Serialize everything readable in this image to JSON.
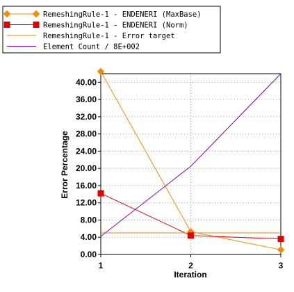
{
  "chart_data": {
    "type": "line",
    "xlabel": "Iteration",
    "ylabel": "Error Percentage",
    "x": [
      1,
      2,
      3
    ],
    "xlim": [
      1,
      3
    ],
    "ylim": [
      0,
      42
    ],
    "yticks": [
      0,
      4,
      8,
      12,
      16,
      20,
      24,
      28,
      32,
      36,
      40
    ],
    "ytick_labels": [
      "0.00",
      "4.00",
      "8.00",
      "12.00",
      "16.00",
      "20.00",
      "24.00",
      "28.00",
      "32.00",
      "36.00",
      "40.00"
    ],
    "xtick_labels": [
      "1",
      "2",
      "3"
    ],
    "grid": true,
    "legend_position": "top-left",
    "series": [
      {
        "name": "RemeshingRule-1 - ENDENERI (MaxBase)",
        "values": [
          42.5,
          5.3,
          1.1
        ],
        "color": "#f08c00",
        "marker": "diamond"
      },
      {
        "name": "RemeshingRule-1 - ENDENERI (Norm)",
        "values": [
          14.2,
          4.4,
          3.6
        ],
        "color": "#e00000",
        "marker": "square"
      },
      {
        "name": "RemeshingRule-1 - Error target",
        "values": [
          5.0,
          5.0,
          5.0
        ],
        "color": "#e08a00",
        "marker": "none"
      },
      {
        "name": "Element Count / 8E+002",
        "values": [
          4.2,
          20.5,
          42.0
        ],
        "color": "#8000c0",
        "marker": "none"
      }
    ]
  }
}
